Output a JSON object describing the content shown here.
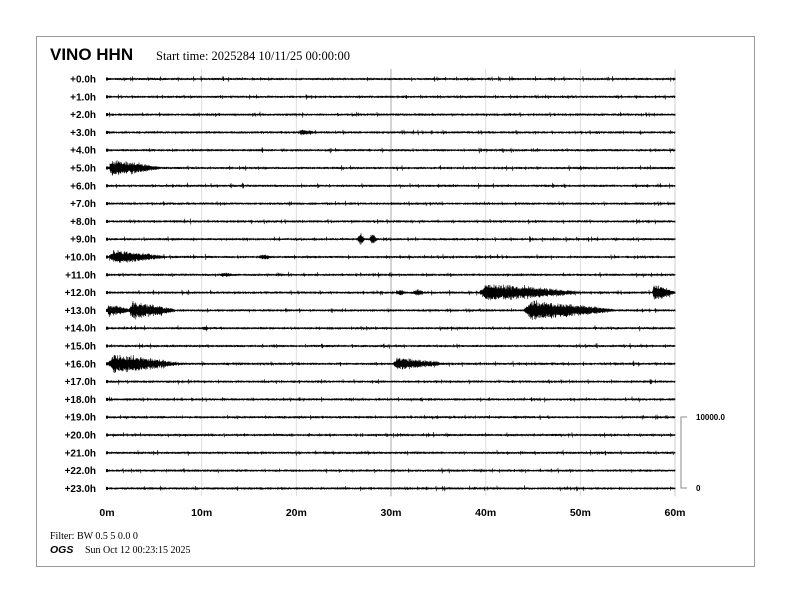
{
  "header": {
    "station": "VINO HHN",
    "start_time": "Start time: 2025284 10/11/25 00:00:00"
  },
  "footer": {
    "filter": "Filter: BW 0.5 5 0.0 0",
    "org": "OGS",
    "plot_date": "Sun Oct 12 00:23:15 2025"
  },
  "chart_data": {
    "type": "helicorder",
    "title": "VINO HHN",
    "row_labels": [
      "+0.0h",
      "+1.0h",
      "+2.0h",
      "+3.0h",
      "+4.0h",
      "+5.0h",
      "+6.0h",
      "+7.0h",
      "+8.0h",
      "+9.0h",
      "+10.0h",
      "+11.0h",
      "+12.0h",
      "+13.0h",
      "+14.0h",
      "+15.0h",
      "+16.0h",
      "+17.0h",
      "+18.0h",
      "+19.0h",
      "+20.0h",
      "+21.0h",
      "+22.0h",
      "+23.0h"
    ],
    "x_ticks": [
      "0m",
      "10m",
      "20m",
      "30m",
      "40m",
      "50m",
      "60m"
    ],
    "xlim_minutes": [
      0,
      60
    ],
    "grid_minutes": [
      10,
      20,
      30,
      40,
      50
    ],
    "scale_bar": {
      "top_label": "10000.0",
      "bottom_label": "0",
      "max": 10000
    },
    "noise_amplitude": 120,
    "events": [
      {
        "hour": 3,
        "start_min": 20.4,
        "duration_min": 1.6,
        "amplitude": 350
      },
      {
        "hour": 5,
        "start_min": 0.1,
        "duration_min": 5.5,
        "amplitude": 1200
      },
      {
        "hour": 9,
        "start_min": 26.4,
        "duration_min": 0.8,
        "amplitude": 700
      },
      {
        "hour": 9,
        "start_min": 27.7,
        "duration_min": 0.8,
        "amplitude": 700
      },
      {
        "hour": 10,
        "start_min": 0.2,
        "duration_min": 6.0,
        "amplitude": 1000
      },
      {
        "hour": 10,
        "start_min": 16.0,
        "duration_min": 1.2,
        "amplitude": 300
      },
      {
        "hour": 11,
        "start_min": 12.0,
        "duration_min": 1.5,
        "amplitude": 250
      },
      {
        "hour": 12,
        "start_min": 30.5,
        "duration_min": 1.0,
        "amplitude": 300
      },
      {
        "hour": 12,
        "start_min": 32.3,
        "duration_min": 1.2,
        "amplitude": 350
      },
      {
        "hour": 12,
        "start_min": 39.3,
        "duration_min": 10.5,
        "amplitude": 1400
      },
      {
        "hour": 12,
        "start_min": 57.6,
        "duration_min": 2.4,
        "amplitude": 1300
      },
      {
        "hour": 13,
        "start_min": 0.0,
        "duration_min": 2.6,
        "amplitude": 900
      },
      {
        "hour": 13,
        "start_min": 2.3,
        "duration_min": 5.0,
        "amplitude": 1300
      },
      {
        "hour": 13,
        "start_min": 44.0,
        "duration_min": 9.5,
        "amplitude": 1500
      },
      {
        "hour": 14,
        "start_min": 10.0,
        "duration_min": 0.6,
        "amplitude": 250
      },
      {
        "hour": 16,
        "start_min": 0.1,
        "duration_min": 7.5,
        "amplitude": 1500
      },
      {
        "hour": 16,
        "start_min": 30.2,
        "duration_min": 5.5,
        "amplitude": 900
      },
      {
        "hour": 16,
        "start_min": 55.5,
        "duration_min": 0.2,
        "amplitude": 500
      }
    ]
  }
}
